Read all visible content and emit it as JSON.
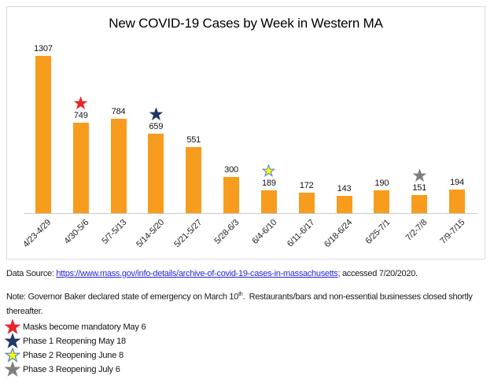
{
  "chart_data": {
    "type": "bar",
    "title": "New COVID-19 Cases by Week in Western MA",
    "categories": [
      "4/23-4/29",
      "4/30-5/6",
      "5/7-5/13",
      "5/14-5/20",
      "5/21-5/27",
      "5/28-6/3",
      "6/4-6/10",
      "6/11-6/17",
      "6/18-6/24",
      "6/25-7/1",
      "7/2-7/8",
      "7/9-7/15"
    ],
    "values": [
      1307,
      749,
      784,
      659,
      551,
      300,
      189,
      172,
      143,
      190,
      151,
      194
    ],
    "xlabel": "",
    "ylabel": "",
    "ylim": [
      0,
      1400
    ],
    "grid": false,
    "y_axis_shown": false,
    "bar_color": "#F89C1E",
    "axis_color": "#C9C9C9",
    "markers": [
      {
        "category_index": 1,
        "star": "red"
      },
      {
        "category_index": 3,
        "star": "navy"
      },
      {
        "category_index": 6,
        "star": "yellow"
      },
      {
        "category_index": 10,
        "star": "gray"
      }
    ],
    "star_colors": {
      "red": {
        "fill": "#E8252B",
        "stroke": "#E8252B"
      },
      "navy": {
        "fill": "#1F3864",
        "stroke": "#1F3864"
      },
      "yellow": {
        "fill": "#FFFF00",
        "stroke": "#5B87C5"
      },
      "gray": {
        "fill": "#7F7F7F",
        "stroke": "#7F7F7F"
      }
    }
  },
  "source_line": {
    "prefix": "Data Source: ",
    "link_text": "https://www.mass.gov/info-details/archive-of-covid-19-cases-in-massachusetts",
    "suffix": "; accessed 7/20/2020.",
    "link_color": "#2727DE"
  },
  "note": {
    "text_before_sup": "Note: Governor Baker declared state of emergency on March 10",
    "sup": "th",
    "text_after_sup": ".  Restaurants/bars and non-essential businesses closed shortly thereafter."
  },
  "legend": {
    "items": [
      {
        "star": "red",
        "label": "Masks become mandatory May 6"
      },
      {
        "star": "navy",
        "label": "Phase 1 Reopening May 18"
      },
      {
        "star": "yellow",
        "label": "Phase 2 Reopening June 8"
      },
      {
        "star": "gray",
        "label": "Phase 3 Reopening July 6"
      }
    ]
  }
}
